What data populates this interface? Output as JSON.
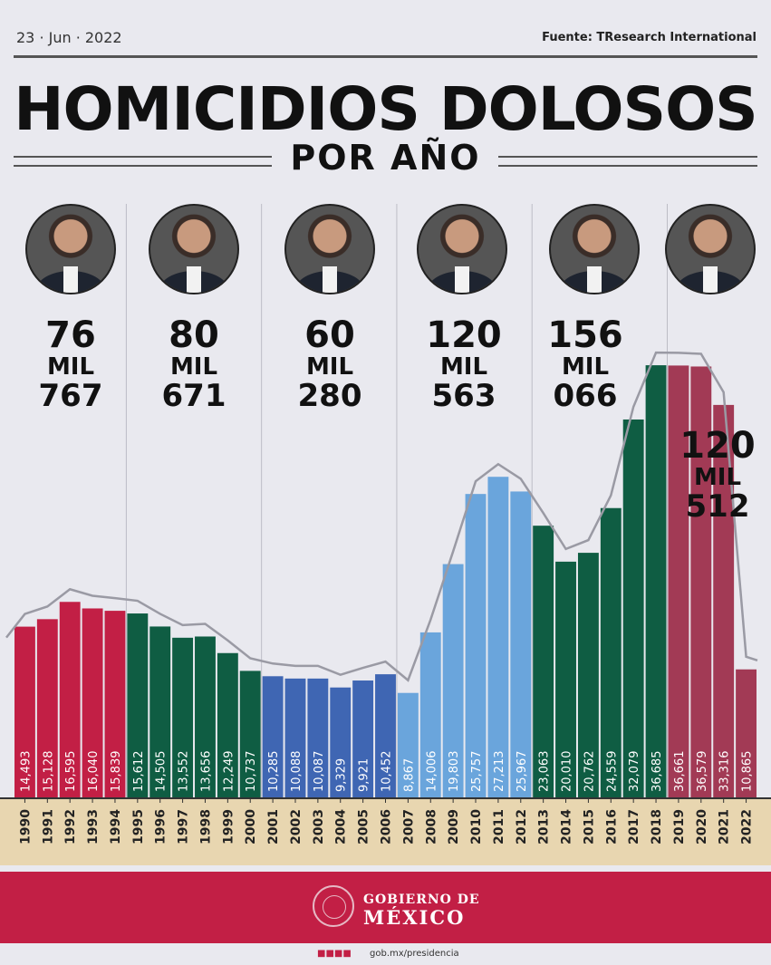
{
  "header": {
    "date": "23 · Jun · 2022",
    "source": "Fuente: TResearch International"
  },
  "title": "HOMICIDIOS DOLOSOS",
  "subtitle": "POR AÑO",
  "periods": [
    {
      "line1": "76",
      "line2": "MIL",
      "line3": "767",
      "color": "#c21f45"
    },
    {
      "line1": "80",
      "line2": "MIL",
      "line3": "671",
      "color": "#0f5d43"
    },
    {
      "line1": "60",
      "line2": "MIL",
      "line3": "280",
      "color": "#3f66b3"
    },
    {
      "line1": "120",
      "line2": "MIL",
      "line3": "563",
      "color": "#6aa5dc"
    },
    {
      "line1": "156",
      "line2": "MIL",
      "line3": "066",
      "color": "#0f5d43"
    },
    {
      "line1": "120",
      "line2": "MIL",
      "line3": "512",
      "color": "#a23a55"
    }
  ],
  "chart_data": {
    "type": "bar",
    "title": "HOMICIDIOS DOLOSOS",
    "subtitle": "POR AÑO",
    "categories": [
      "1990",
      "1991",
      "1992",
      "1993",
      "1994",
      "1995",
      "1996",
      "1997",
      "1998",
      "1999",
      "2000",
      "2001",
      "2002",
      "2003",
      "2004",
      "2005",
      "2006",
      "2007",
      "2008",
      "2009",
      "2010",
      "2011",
      "2012",
      "2013",
      "2014",
      "2015",
      "2016",
      "2017",
      "2018",
      "2019",
      "2020",
      "2021",
      "2022"
    ],
    "values": [
      14493,
      15128,
      16595,
      16040,
      15839,
      15612,
      14505,
      13552,
      13656,
      12249,
      10737,
      10285,
      10088,
      10087,
      9329,
      9921,
      10452,
      8867,
      14006,
      19803,
      25757,
      27213,
      25967,
      23063,
      20010,
      20762,
      24559,
      32079,
      36685,
      36661,
      36579,
      33316,
      10865
    ],
    "data_labels": [
      "14,493",
      "15,128",
      "16,595",
      "16,040",
      "15,839",
      "15,612",
      "14,505",
      "13,552",
      "13,656",
      "12,249",
      "10,737",
      "10,285",
      "10,088",
      "10,087",
      "9,329",
      "9,921",
      "10,452",
      "8,867",
      "14,006",
      "19,803",
      "25,757",
      "27,213",
      "25,967",
      "23,063",
      "20,010",
      "20,762",
      "24,559",
      "32,079",
      "36,685",
      "36,661",
      "36,579",
      "33,316",
      "10,865"
    ],
    "groups": [
      {
        "start": 0,
        "end": 4,
        "color": "#c21f45"
      },
      {
        "start": 5,
        "end": 10,
        "color": "#0f5d43"
      },
      {
        "start": 11,
        "end": 16,
        "color": "#3f66b3"
      },
      {
        "start": 17,
        "end": 22,
        "color": "#6aa5dc"
      },
      {
        "start": 23,
        "end": 28,
        "color": "#0f5d43"
      },
      {
        "start": 29,
        "end": 32,
        "color": "#a23a55"
      }
    ],
    "trend_line": true,
    "ylim": [
      0,
      40000
    ]
  },
  "footer": {
    "org_line1": "GOBIERNO DE",
    "org_line2": "MÉXICO",
    "website": "gob.mx/presidencia"
  },
  "colors": {
    "axis_band": "#e8d6b0",
    "footer": "#c21f45",
    "trend": "#9a9aa4"
  }
}
